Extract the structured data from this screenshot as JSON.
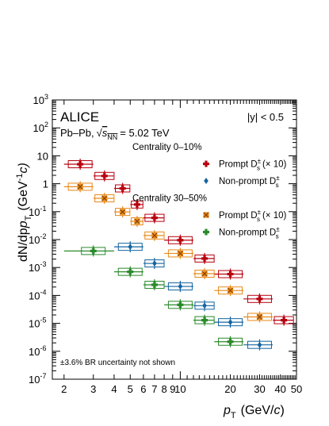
{
  "chart_data": {
    "type": "scatter",
    "experiment": "ALICE",
    "system": "Pb–Pb,",
    "energy_label": "s",
    "energy_sub": "NN",
    "energy_value": "= 5.02 TeV",
    "rapidity_label": "|y| < 0.5",
    "note": "±3.6% BR uncertainty not shown",
    "ylabel": "dN/dp",
    "ylabel_sub": "T",
    "ylabel_unit": "(GeV",
    "ylabel_unit_sup": "-1",
    "ylabel_unit_tail": "c)",
    "xlabel": "p",
    "xlabel_sub": "T",
    "xlabel_unit": "(GeV/c)",
    "x_scale": "log",
    "y_scale": "log",
    "xlim": [
      1.7,
      50
    ],
    "ylim": [
      1e-07,
      1000
    ],
    "x_ticks": [
      2,
      3,
      4,
      5,
      6,
      7,
      8,
      9,
      10,
      20,
      30,
      40,
      50
    ],
    "x_tick_labels": [
      "2",
      "3",
      "4",
      "5",
      "6",
      "7",
      "8",
      "9",
      "10",
      "20",
      "30",
      "40",
      "50"
    ],
    "y_ticks": [
      1e-07,
      1e-06,
      1e-05,
      0.0001,
      0.001,
      0.01,
      0.1,
      1,
      10,
      100,
      1000
    ],
    "y_tick_labels": [
      {
        "base": "10",
        "exp": "-7"
      },
      {
        "base": "10",
        "exp": "-6"
      },
      {
        "base": "10",
        "exp": "-5"
      },
      {
        "base": "10",
        "exp": "-4"
      },
      {
        "base": "10",
        "exp": "-3"
      },
      {
        "base": "10",
        "exp": "-2"
      },
      {
        "base": "10",
        "exp": "-1"
      },
      {
        "base": "1",
        "exp": ""
      },
      {
        "base": "10",
        "exp": ""
      },
      {
        "base": "10",
        "exp": "2"
      },
      {
        "base": "10",
        "exp": "3"
      }
    ],
    "legend": [
      {
        "header": "Centrality 0–10%"
      },
      {
        "label": "Prompt D",
        "sup": "±",
        "sub": "s",
        "tail": "(× 10)",
        "series": 0
      },
      {
        "label": "Non-prompt D",
        "sup": "±",
        "sub": "s",
        "tail": "",
        "series": 1
      },
      {
        "header": "Centrality 30–50%"
      },
      {
        "label": "Prompt D",
        "sup": "±",
        "sub": "s",
        "tail": "(× 10)",
        "series": 2
      },
      {
        "label": "Non-prompt D",
        "sup": "±",
        "sub": "s",
        "tail": "",
        "series": 3
      }
    ],
    "legend_placement": "top-right",
    "series": [
      {
        "color": "#b8000f",
        "marker": "cross",
        "points": [
          {
            "x": 2.5,
            "xlo": 2,
            "xhi": 3,
            "y": 5.0
          },
          {
            "x": 3.5,
            "xlo": 3,
            "xhi": 4,
            "y": 1.9
          },
          {
            "x": 4.5,
            "xlo": 4,
            "xhi": 5,
            "y": 0.68
          },
          {
            "x": 5.5,
            "xlo": 5,
            "xhi": 6,
            "y": 0.18
          },
          {
            "x": 7.0,
            "xlo": 6,
            "xhi": 8,
            "y": 0.06
          },
          {
            "x": 10.0,
            "xlo": 8,
            "xhi": 12,
            "y": 0.0095
          },
          {
            "x": 14.0,
            "xlo": 12,
            "xhi": 16,
            "y": 0.0021
          },
          {
            "x": 20.0,
            "xlo": 16,
            "xhi": 24,
            "y": 0.00058
          },
          {
            "x": 30.0,
            "xlo": 24,
            "xhi": 36,
            "y": 7.5e-05
          },
          {
            "x": 42.0,
            "xlo": 36,
            "xhi": 48,
            "y": 1.3e-05
          }
        ]
      },
      {
        "color": "#1464a0",
        "marker": "diamond",
        "points": [
          {
            "x": 5.0,
            "xlo": 4,
            "xhi": 6,
            "y": 0.0055
          },
          {
            "x": 7.0,
            "xlo": 6,
            "xhi": 8,
            "y": 0.0014
          },
          {
            "x": 10.0,
            "xlo": 8,
            "xhi": 12,
            "y": 0.00021
          },
          {
            "x": 14.0,
            "xlo": 12,
            "xhi": 16,
            "y": 4.3e-05
          },
          {
            "x": 20.0,
            "xlo": 16,
            "xhi": 24,
            "y": 1.1e-05
          },
          {
            "x": 30.0,
            "xlo": 24,
            "xhi": 36,
            "y": 1.7e-06
          }
        ]
      },
      {
        "color": "#e88a1a",
        "marker": "xsquare",
        "points": [
          {
            "x": 2.5,
            "xlo": 2,
            "xhi": 3,
            "y": 0.78
          },
          {
            "x": 3.5,
            "xlo": 3,
            "xhi": 4,
            "y": 0.3
          },
          {
            "x": 4.5,
            "xlo": 4,
            "xhi": 5,
            "y": 0.098
          },
          {
            "x": 5.5,
            "xlo": 5,
            "xhi": 6,
            "y": 0.045
          },
          {
            "x": 7.0,
            "xlo": 6,
            "xhi": 8,
            "y": 0.014
          },
          {
            "x": 10.0,
            "xlo": 8,
            "xhi": 12,
            "y": 0.0032
          },
          {
            "x": 14.0,
            "xlo": 12,
            "xhi": 16,
            "y": 0.0006
          },
          {
            "x": 20.0,
            "xlo": 16,
            "xhi": 24,
            "y": 0.00015
          },
          {
            "x": 30.0,
            "xlo": 24,
            "xhi": 36,
            "y": 1.7e-05
          }
        ]
      },
      {
        "color": "#2a8a2a",
        "marker": "cross",
        "points": [
          {
            "x": 3.0,
            "xlo": 2,
            "xhi": 4,
            "y": 0.0039
          },
          {
            "x": 5.0,
            "xlo": 4,
            "xhi": 6,
            "y": 0.0007
          },
          {
            "x": 7.0,
            "xlo": 6,
            "xhi": 8,
            "y": 0.00024
          },
          {
            "x": 10.0,
            "xlo": 8,
            "xhi": 12,
            "y": 4.6e-05
          },
          {
            "x": 14.0,
            "xlo": 12,
            "xhi": 16,
            "y": 1.3e-05
          },
          {
            "x": 20.0,
            "xlo": 16,
            "xhi": 24,
            "y": 2.2e-06
          }
        ]
      }
    ]
  }
}
